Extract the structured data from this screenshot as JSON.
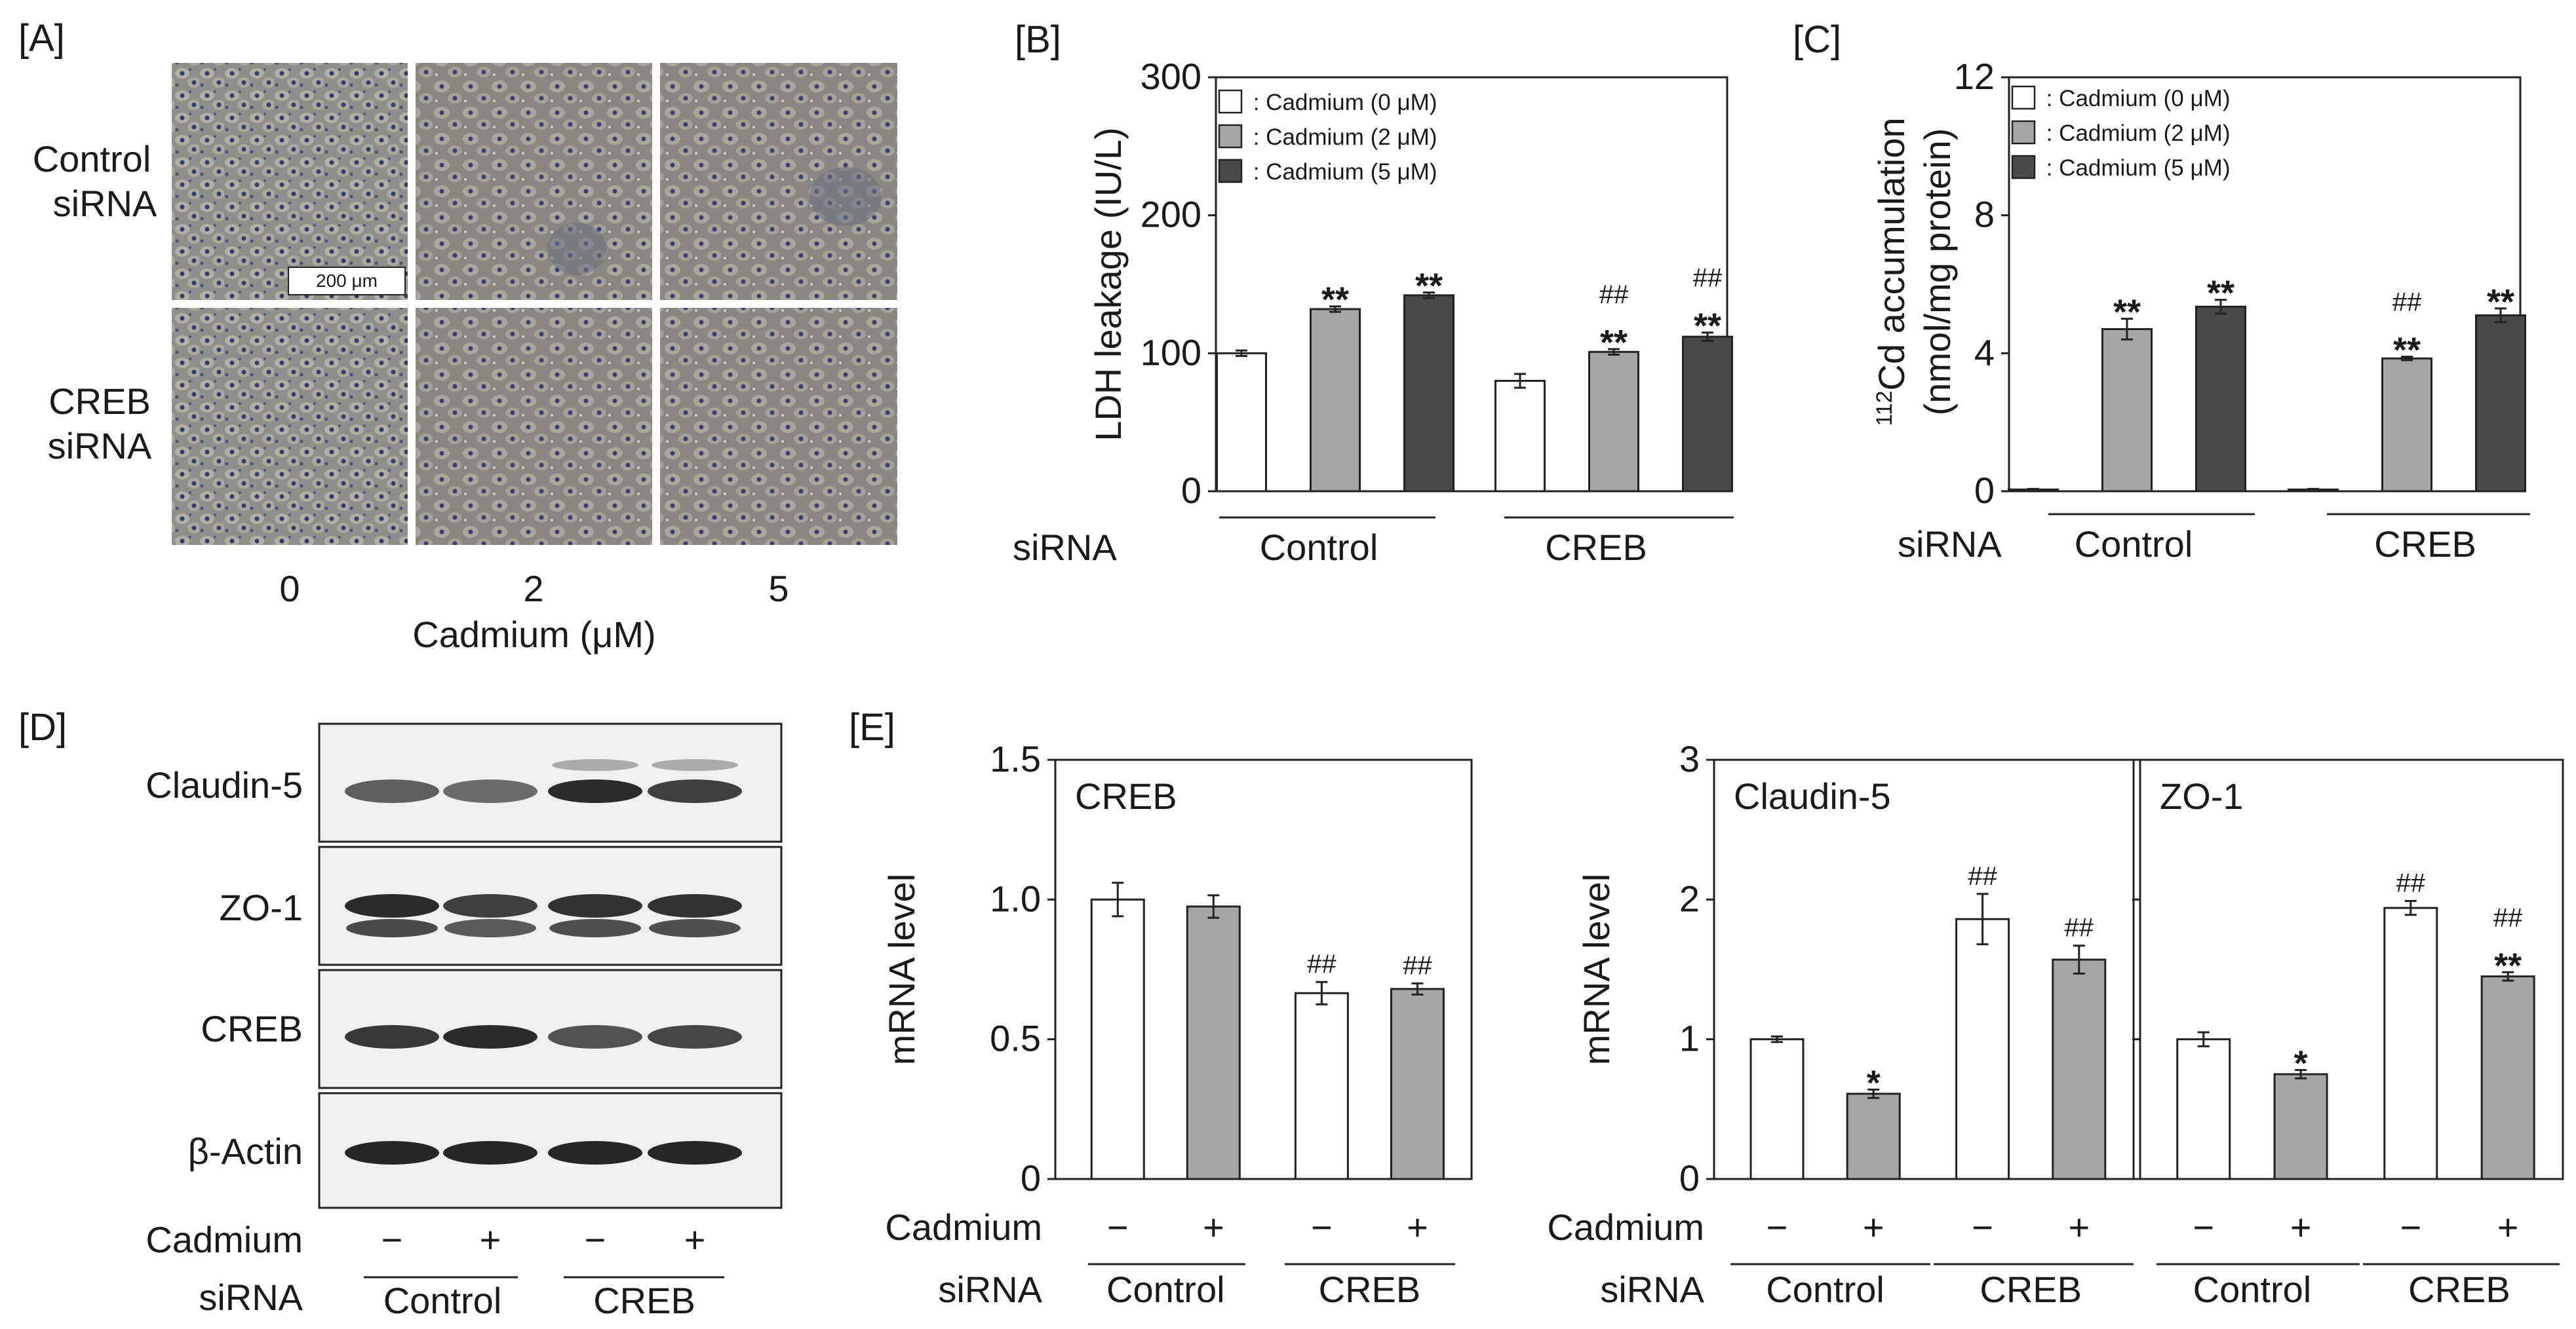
{
  "panels": [
    {
      "label": "[A]",
      "rows": [
        "Control\nsiRNA",
        "CREB\nsiRNA"
      ],
      "columns": [
        "0",
        "2",
        "5"
      ],
      "xlabel": "Cadmium (μM)",
      "scale_bar": "200 μm"
    },
    {
      "label": "[B]",
      "legend": [
        {
          "label": " : Cadmium (0 μM)",
          "color": "#ffffff"
        },
        {
          "label": " : Cadmium (2 μM)",
          "color": "#a6a6a6"
        },
        {
          "label": " : Cadmium (5 μM)",
          "color": "#4a4a4a"
        }
      ],
      "group_title": "siRNA",
      "groups": [
        "Control",
        "CREB"
      ]
    },
    {
      "label": "[C]",
      "legend": [
        {
          "label": " : Cadmium (0 μM)",
          "color": "#ffffff"
        },
        {
          "label": " : Cadmium (2 μM)",
          "color": "#a6a6a6"
        },
        {
          "label": " : Cadmium (5 μM)",
          "color": "#4a4a4a"
        }
      ],
      "group_title": "siRNA",
      "groups": [
        "Control",
        "CREB"
      ]
    },
    {
      "label": "[D]",
      "blots": [
        "Claudin-5",
        "ZO-1",
        "CREB",
        "β-Actin"
      ],
      "row_titles": [
        "Cadmium",
        "siRNA"
      ],
      "cadmium": [
        "−",
        "+",
        "−",
        "+"
      ],
      "groups": [
        "Control",
        "CREB"
      ]
    },
    {
      "label": "[E]",
      "row_titles": [
        "Cadmium",
        "siRNA"
      ],
      "cadmium": [
        "−",
        "+",
        "−",
        "+"
      ],
      "groups": [
        "Control",
        "CREB"
      ]
    }
  ],
  "chart_data": [
    {
      "type": "bar",
      "panel": "B",
      "ylabel": "LDH leakage (IU/L)",
      "ylim": [
        0,
        300
      ],
      "yticks": [
        "0",
        "100",
        "200",
        "300"
      ],
      "categories": [
        "Control",
        "CREB"
      ],
      "series": [
        {
          "name": "Cadmium (0 μM)",
          "values": [
            100,
            80
          ],
          "errors": [
            2,
            5
          ],
          "color": "#ffffff",
          "marks": [
            "",
            ""
          ]
        },
        {
          "name": "Cadmium (2 μM)",
          "values": [
            132,
            101
          ],
          "errors": [
            2,
            2
          ],
          "color": "#a6a6a6",
          "marks": [
            "**",
            "##\n**"
          ]
        },
        {
          "name": "Cadmium (5 μM)",
          "values": [
            142,
            112
          ],
          "errors": [
            2,
            3
          ],
          "color": "#4a4a4a",
          "marks": [
            "**",
            "##\n**"
          ]
        }
      ]
    },
    {
      "type": "bar",
      "panel": "C",
      "ylabel": "112Cd accumulation (nmol/mg protein)",
      "ylim": [
        0,
        12
      ],
      "yticks": [
        "0",
        "4",
        "8",
        "12"
      ],
      "categories": [
        "Control",
        "CREB"
      ],
      "series": [
        {
          "name": "Cadmium (0 μM)",
          "values": [
            0.05,
            0.05
          ],
          "errors": [
            0.02,
            0.02
          ],
          "color": "#ffffff",
          "marks": [
            "",
            ""
          ]
        },
        {
          "name": "Cadmium (2 μM)",
          "values": [
            4.7,
            3.85
          ],
          "errors": [
            0.3,
            0.05
          ],
          "color": "#a6a6a6",
          "marks": [
            "**",
            "##\n**"
          ]
        },
        {
          "name": "Cadmium (5 μM)",
          "values": [
            5.35,
            5.1
          ],
          "errors": [
            0.2,
            0.2
          ],
          "color": "#4a4a4a",
          "marks": [
            "**",
            "**"
          ]
        }
      ]
    },
    {
      "type": "bar",
      "panel": "E-CREB",
      "title": "CREB",
      "ylabel": "mRNA level",
      "ylim": [
        0,
        1.5
      ],
      "yticks": [
        "0",
        "0.5",
        "1.0",
        "1.5"
      ],
      "categories": [
        "Control −",
        "Control +",
        "CREB −",
        "CREB +"
      ],
      "values": [
        1.0,
        0.975,
        0.665,
        0.68
      ],
      "errors": [
        0.06,
        0.04,
        0.04,
        0.02
      ],
      "colors": [
        "#ffffff",
        "#a6a6a6",
        "#ffffff",
        "#a6a6a6"
      ],
      "marks": [
        "",
        "",
        "##",
        "##"
      ]
    },
    {
      "type": "bar",
      "panel": "E-Claudin-5",
      "title": "Claudin-5",
      "ylabel": "mRNA level",
      "ylim": [
        0,
        3
      ],
      "yticks": [
        "0",
        "1",
        "2",
        "3"
      ],
      "categories": [
        "Control −",
        "Control +",
        "CREB −",
        "CREB +"
      ],
      "values": [
        1.0,
        0.61,
        1.86,
        1.57
      ],
      "errors": [
        0.02,
        0.03,
        0.18,
        0.1
      ],
      "colors": [
        "#ffffff",
        "#a6a6a6",
        "#ffffff",
        "#a6a6a6"
      ],
      "marks": [
        "",
        "*",
        "##",
        "##"
      ]
    },
    {
      "type": "bar",
      "panel": "E-ZO-1",
      "title": "ZO-1",
      "ylim": [
        0,
        3
      ],
      "categories": [
        "Control −",
        "Control +",
        "CREB −",
        "CREB +"
      ],
      "values": [
        1.0,
        0.75,
        1.94,
        1.45
      ],
      "errors": [
        0.05,
        0.03,
        0.05,
        0.03
      ],
      "colors": [
        "#ffffff",
        "#a6a6a6",
        "#ffffff",
        "#a6a6a6"
      ],
      "marks": [
        "",
        "*",
        "##",
        "##\n**"
      ]
    }
  ]
}
